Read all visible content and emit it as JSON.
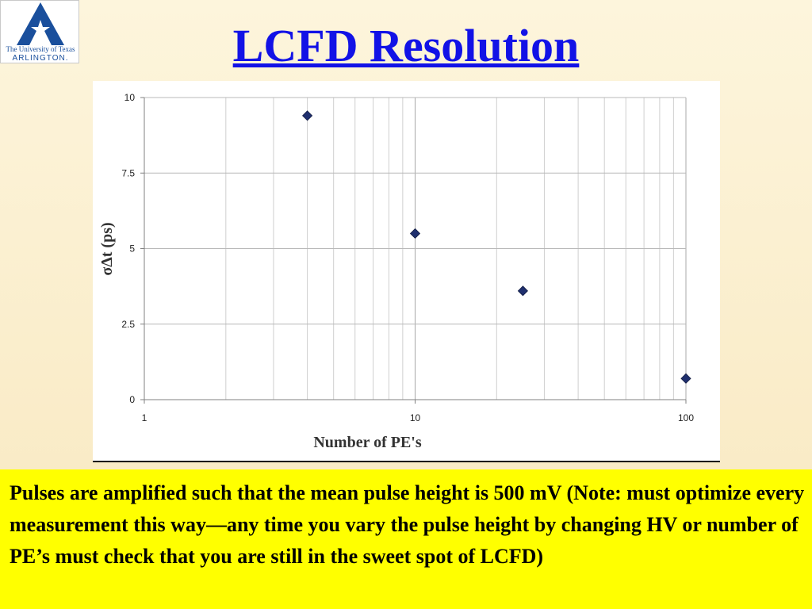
{
  "logo": {
    "icon": "ut-arlington-star-a-icon",
    "line1": "The University of Texas",
    "line2": "ARLINGTON.",
    "color": "#1a4f9c"
  },
  "slide": {
    "title": "LCFD Resolution",
    "title_color": "#1212e6"
  },
  "chart_data": {
    "type": "scatter",
    "title": "",
    "xlabel": "Number of PE's",
    "ylabel": "σΔt (ps)",
    "x_scale": "log",
    "xlim": [
      1,
      100
    ],
    "ylim": [
      0,
      10
    ],
    "x_ticks": [
      1,
      10,
      100
    ],
    "x_tick_labels": [
      "1",
      "10",
      "100"
    ],
    "y_ticks": [
      0,
      2.5,
      5,
      7.5,
      10
    ],
    "y_tick_labels": [
      "0",
      "2.5",
      "5",
      "7.5",
      "10"
    ],
    "grid": true,
    "marker": "diamond",
    "marker_color": "#1f2f6e",
    "series": [
      {
        "x": [
          4,
          10,
          25,
          100
        ],
        "y": [
          9.4,
          5.5,
          3.6,
          0.7
        ]
      }
    ]
  },
  "note": {
    "text": "Pulses are amplified such that the mean pulse height is 500 mV (Note: must optimize every measurement this way—any time you vary the pulse height by changing HV or number of PE’s must check that you are still in the sweet spot of LCFD)",
    "background": "#ffff00"
  }
}
